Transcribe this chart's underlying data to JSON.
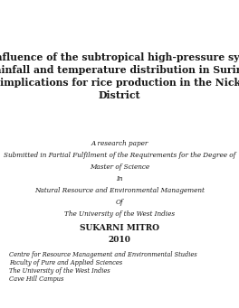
{
  "bg_color": "#ffffff",
  "title_line1": "The influence of the subtropical high-pressure systems",
  "title_line2": "on rainfall and temperature distribution in Suriname",
  "title_line3": "and implications for rice production in the Nickerie",
  "title_line4": "District",
  "subtitle1": "A research paper",
  "subtitle2": "Submitted in Partial Fulfilment of the Requirements for the Degree of",
  "subtitle3": "Master of Science",
  "subtitle4": "In",
  "subtitle5": "Natural Resource and Environmental Management",
  "subtitle5b": "Of",
  "subtitle6": "The University of the West Indies",
  "author": "SUKARNI MITRO",
  "year": "2010",
  "footer1": "Centre for Resource Management and Environmental Studies",
  "footer2": "Faculty of Pure and Applied Sciences",
  "footer3": "The University of the West Indies",
  "footer4": "Cave Hill Campus",
  "title_fontsize": 7.8,
  "italic_fontsize": 5.2,
  "author_fontsize": 6.5,
  "footer_fontsize": 4.8
}
